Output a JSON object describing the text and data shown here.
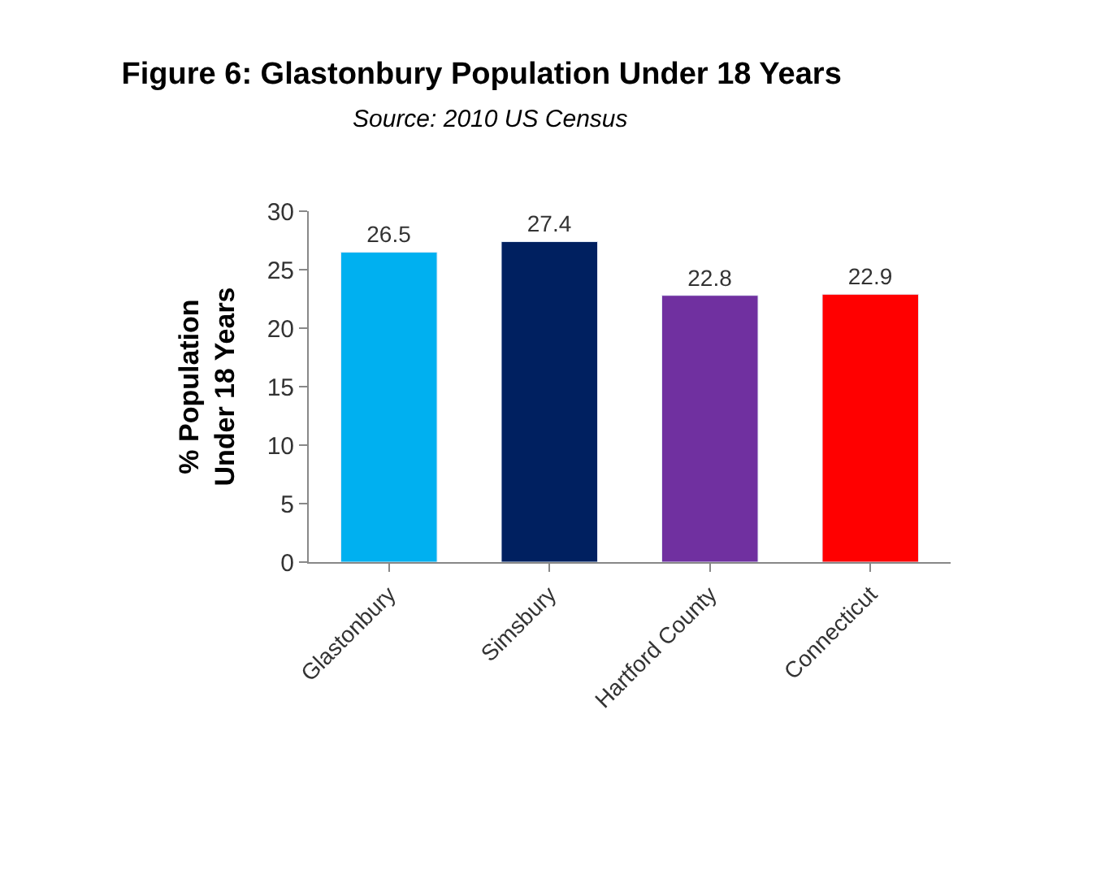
{
  "chart_data": {
    "type": "bar",
    "title": "Figure 6: Glastonbury Population Under 18 Years",
    "subtitle": "Source: 2010 US Census",
    "ylabel": "% Population\nUnder 18 Years",
    "categories": [
      "Glastonbury",
      "Simsbury",
      "Hartford County",
      "Connecticut"
    ],
    "values": [
      26.5,
      27.4,
      22.8,
      22.9
    ],
    "colors": [
      "#00b0f0",
      "#002060",
      "#7030a0",
      "#ff0000"
    ],
    "ylim": [
      0,
      30
    ],
    "yticks": [
      0,
      5,
      10,
      15,
      20,
      25,
      30
    ],
    "data_labels": true,
    "legend": false
  }
}
